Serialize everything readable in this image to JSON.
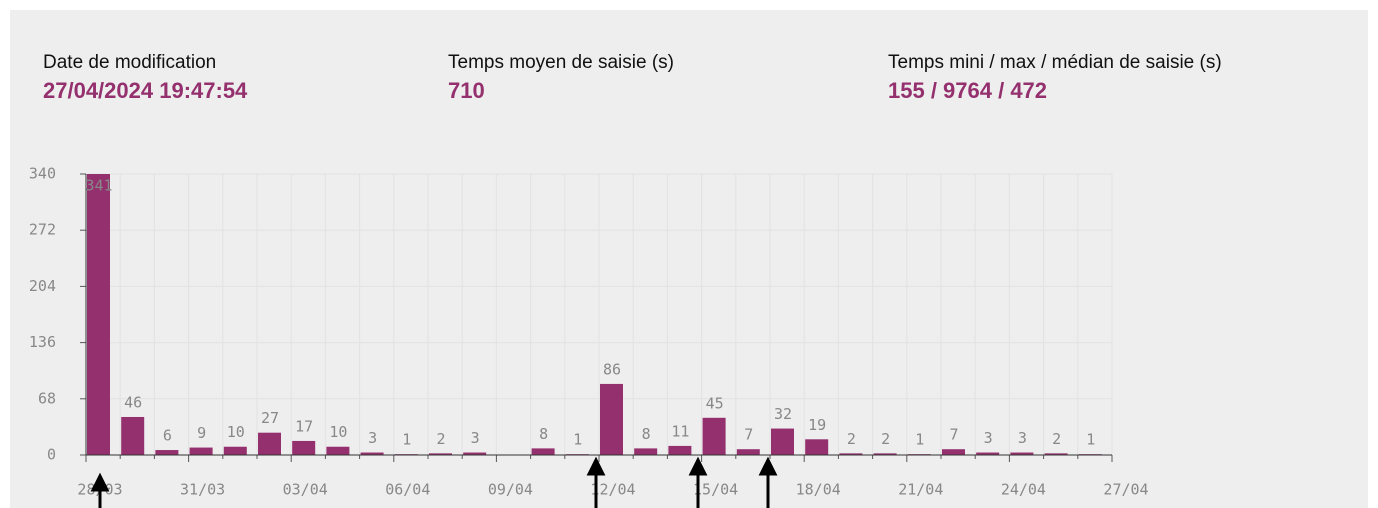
{
  "header": {
    "fields": [
      {
        "label": "Date de modification",
        "value": "27/04/2024 19:47:54"
      },
      {
        "label": "Temps moyen de saisie (s)",
        "value": "710"
      },
      {
        "label": "Temps mini / max / médian de saisie (s)",
        "value": "155 / 9764 / 472"
      }
    ]
  },
  "chart_data": {
    "type": "bar",
    "categories": [
      "28/03",
      null,
      null,
      "31/03",
      null,
      null,
      "03/04",
      null,
      null,
      "06/04",
      null,
      null,
      "09/04",
      null,
      null,
      "12/04",
      null,
      null,
      "15/04",
      null,
      null,
      "18/04",
      null,
      null,
      "21/04",
      null,
      null,
      "24/04",
      null,
      null,
      "27/04"
    ],
    "values": [
      341,
      46,
      6,
      9,
      10,
      27,
      17,
      10,
      3,
      1,
      2,
      3,
      null,
      8,
      1,
      86,
      8,
      11,
      45,
      7,
      32,
      19,
      2,
      2,
      1,
      7,
      3,
      3,
      2,
      1,
      null
    ],
    "color": "#94306e",
    "ylim": [
      0,
      340
    ],
    "yticks": [
      0,
      68,
      136,
      204,
      272,
      340
    ],
    "grid": true
  }
}
